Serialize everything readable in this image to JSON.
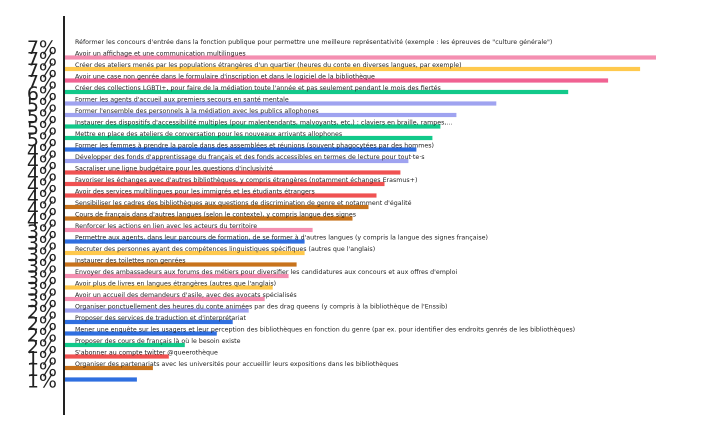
{
  "chart_data": {
    "type": "bar",
    "orientation": "horizontal",
    "xlim": [
      0,
      7.6
    ],
    "grid": false,
    "legend": "none",
    "items": [
      {
        "label": "Réformer les concours d'entrée dans la fonction publique pour permettre une meilleure représentativité (exemple : les épreuves de \"culture générale\")",
        "value": 7,
        "display": "7%",
        "color": "#ffffff"
      },
      {
        "label": "Avoir un affichage et une communication multilingues",
        "value": 7.4,
        "display": "7%",
        "color": "#f48fb1"
      },
      {
        "label": "Créer des ateliers menés par les populations étrangères d'un quartier (heures du conte en diverses langues, par exemple)",
        "value": 7.2,
        "display": "7%",
        "color": "#ffc94d"
      },
      {
        "label": "Avoir une case non genrée dans le formulaire d'inscription et dans le logiciel de la bibliothèque",
        "value": 6.8,
        "display": "7%",
        "color": "#f06292"
      },
      {
        "label": "Créer des collections LGBTI+, pour faire de la médiation toute l'année et pas seulement pendant le mois des fiertés",
        "value": 6.3,
        "display": "6%",
        "color": "#12c98a"
      },
      {
        "label": "Former les agents d'accueil aux premiers secours en santé mentale",
        "value": 5.4,
        "display": "5%",
        "color": "#9fa3f0"
      },
      {
        "label": "Former l'ensemble des personnels à la médiation avec les publics allophones",
        "value": 4.9,
        "display": "5%",
        "color": "#9fa3f0"
      },
      {
        "label": "Instaurer des dispositifs d'accessibilité multiples (pour malentendants, malvoyants, etc.) : claviers en braille, rampes,...",
        "value": 4.7,
        "display": "5%",
        "color": "#12c98a"
      },
      {
        "label": "Mettre en place des ateliers de conversation pour les nouveaux arrivants allophones",
        "value": 4.6,
        "display": "5%",
        "color": "#12c98a"
      },
      {
        "label": "Former les femmes à prendre la parole dans des assemblées et réunions (souvent phagocytées par des hommes)",
        "value": 4.4,
        "display": "4%",
        "color": "#2f6fe0"
      },
      {
        "label": "Développer des fonds d'apprentissage du français et des fonds accessibles en termes de lecture pour tout·te·s",
        "value": 4.3,
        "display": "4%",
        "color": "#9fa3f0"
      },
      {
        "label": "Sacraliser une ligne budgétaire pour les questions d'inclusivité",
        "value": 4.2,
        "display": "4%",
        "color": "#f05252"
      },
      {
        "label": "Favoriser les échanges avec d'autres bibliothèques, y compris étrangères (notamment échanges Erasmus+)",
        "value": 4.0,
        "display": "4%",
        "color": "#f05252"
      },
      {
        "label": "Avoir des services multilingues pour les immigrés et les étudiants étrangers",
        "value": 3.9,
        "display": "4%",
        "color": "#f05252"
      },
      {
        "label": "Sensibiliser les cadres des bibliothèques aux questions de discrimination de genre et notamment d'égalité",
        "value": 3.8,
        "display": "4%",
        "color": "#c8731c"
      },
      {
        "label": "Cours de français dans d'autres langues (selon le contexte), y compris langue des signes",
        "value": 3.6,
        "display": "4%",
        "color": "#c8731c"
      },
      {
        "label": "Renforcer les actions en lien avec les acteurs du territoire",
        "value": 3.1,
        "display": "3%",
        "color": "#f48fb1"
      },
      {
        "label": "Permettre aux agents, dans leur parcours de formation, de se former à d'autres langues (y compris la langue des signes française)",
        "value": 3.0,
        "display": "3%",
        "color": "#2f6fe0"
      },
      {
        "label": "Recruter des personnes ayant des compétences linguistiques spécifiques (autres que l'anglais)",
        "value": 3.0,
        "display": "3%",
        "color": "#ffc94d"
      },
      {
        "label": "Instaurer des toilettes non genrées",
        "value": 2.9,
        "display": "3%",
        "color": "#c8731c"
      },
      {
        "label": "Envoyer des ambassadeurs aux forums des métiers pour diversifier les candidatures aux concours et aux offres d'emploi",
        "value": 2.8,
        "display": "3%",
        "color": "#f48fb1"
      },
      {
        "label": "Avoir plus de livres en langues étrangères (autres que l'anglais)",
        "value": 2.6,
        "display": "3%",
        "color": "#ffc94d"
      },
      {
        "label": "Avoir un accueil des demandeurs d'asile, avec des avocats spécialisés",
        "value": 2.5,
        "display": "3%",
        "color": "#f48fb1"
      },
      {
        "label": "Organiser ponctuellement des heures du conte animées par des drag queens (y compris à la bibliothèque de l'Enssib)",
        "value": 2.3,
        "display": "2%",
        "color": "#9fa3f0"
      },
      {
        "label": "Proposer des services de traduction et d'interprétariat",
        "value": 2.1,
        "display": "2%",
        "color": "#2f6fe0"
      },
      {
        "label": "Mener une enquête sur les usagers et leur perception des bibliothèques en fonction du genre (par ex. pour identifier des endroits genrés de les bibliothèques)",
        "value": 1.9,
        "display": "2%",
        "color": "#2f6fe0"
      },
      {
        "label": "Proposer des cours de français là où le besoin existe",
        "value": 1.5,
        "display": "2%",
        "color": "#12c98a"
      },
      {
        "label": "S'abonner au compte twitter @queerothèque",
        "value": 1.3,
        "display": "1%",
        "color": "#f05252"
      },
      {
        "label": "Organiser des partenariats avec les universités pour accueillir leurs expositions dans les bibliothèques",
        "value": 1.1,
        "display": "1%",
        "color": "#c8731c"
      },
      {
        "label": "",
        "value": 0.9,
        "display": "1%",
        "color": "#2f6fe0"
      }
    ]
  }
}
